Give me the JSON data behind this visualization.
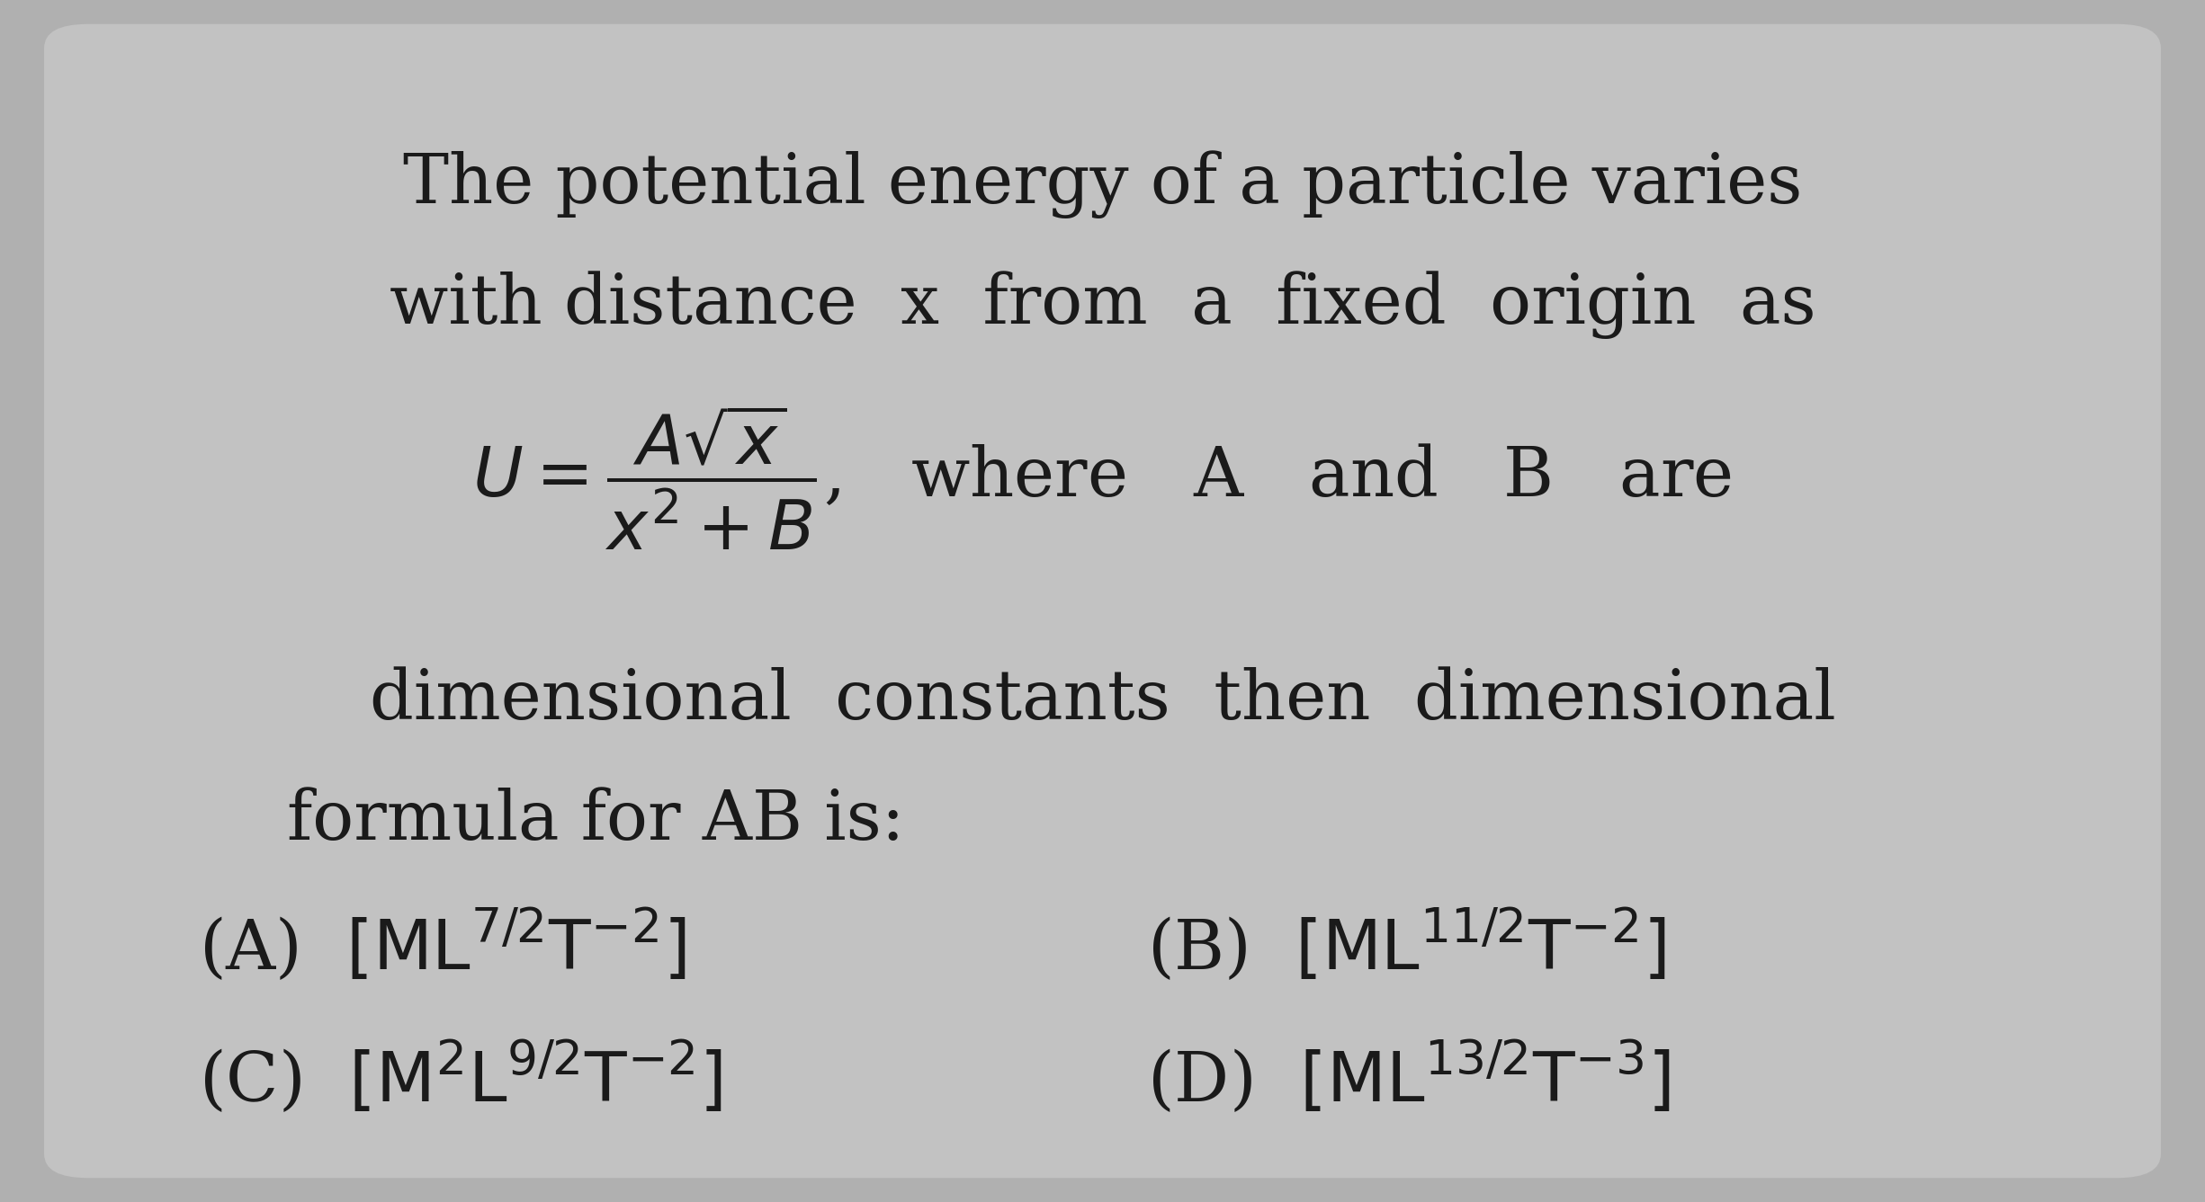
{
  "background_outer": "#b0b0b0",
  "card_color": "#c2c2c2",
  "text_color": "#1a1a1a",
  "figsize": [
    24.51,
    13.37
  ],
  "dpi": 100,
  "line1": "The potential energy of a particle varies",
  "line2": "with distance  x  from  a  fixed  origin  as",
  "line5": "dimensional  constants  then  dimensional",
  "line6": "formula for AB is:",
  "optA": "(A)  $\\left[\\mathrm{ML}^{7/2}\\mathrm{T}^{-2}\\right]$",
  "optB": "(B)  $\\left[\\mathrm{ML}^{11/2}\\mathrm{T}^{-2}\\right]$",
  "optC": "(C)  $\\left[\\mathrm{M}^{2}\\mathrm{L}^{9/2}\\mathrm{T}^{-2}\\right]$",
  "optD": "(D)  $\\left[\\mathrm{ML}^{13/2}\\mathrm{T}^{-3}\\right]$",
  "main_fontsize": 55,
  "formula_fontsize": 55,
  "option_fontsize": 55
}
